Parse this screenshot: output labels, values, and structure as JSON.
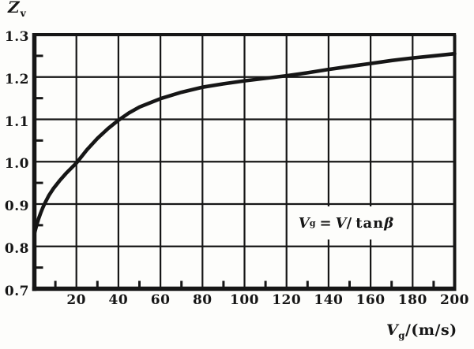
{
  "colors": {
    "ink": "#161616",
    "paper": "#fdfdfb"
  },
  "labels": {
    "y_symbol": {
      "base": "Z",
      "sub": "v",
      "text": "Zv"
    },
    "x_title": {
      "base": "V",
      "sub": "g",
      "rest": "/(m/s)",
      "text": "Vg/(m/s)"
    },
    "annotation": {
      "lhs": "V",
      "lhs_sub": "g",
      "eq": "=",
      "rhs_v": "V",
      "slash": "/",
      "fn": "tan",
      "angle": "β",
      "text": "Vg = V/tanβ"
    }
  },
  "chart_data": {
    "type": "line",
    "title": "",
    "ylabel": "Zv",
    "xlabel": "Vg/(m/s)",
    "annotation": "Vg = V/tanβ",
    "xlim": [
      0,
      200
    ],
    "ylim": [
      0.7,
      1.3
    ],
    "grid": true,
    "x_ticks": [
      20,
      40,
      60,
      80,
      100,
      120,
      140,
      160,
      180,
      200
    ],
    "x_tick_labels": [
      "20",
      "40",
      "60",
      "80",
      "100",
      "120",
      "140",
      "160",
      "180",
      "200"
    ],
    "x_minor_ticks": [
      10,
      30,
      50,
      70,
      90,
      110,
      130,
      150,
      170,
      190
    ],
    "y_ticks": [
      1.3,
      1.2,
      1.1,
      1.0,
      0.9,
      0.8,
      0.7
    ],
    "y_tick_labels": [
      "1.3",
      "1.2",
      "1.1",
      "1.0",
      "0.9",
      "0.8",
      "0.7"
    ],
    "y_minor_ticks": [
      0.75,
      0.85,
      0.95,
      1.05,
      1.15,
      1.25
    ],
    "series": [
      {
        "name": "Zv",
        "x": [
          0,
          1,
          2,
          3,
          4,
          5,
          7,
          9,
          12,
          15,
          20,
          25,
          30,
          35,
          40,
          45,
          50,
          60,
          70,
          80,
          90,
          100,
          110,
          120,
          130,
          140,
          150,
          160,
          170,
          180,
          190,
          200
        ],
        "y": [
          0.83,
          0.849,
          0.865,
          0.879,
          0.891,
          0.902,
          0.921,
          0.936,
          0.955,
          0.972,
          0.997,
          1.028,
          1.055,
          1.078,
          1.098,
          1.115,
          1.129,
          1.149,
          1.164,
          1.176,
          1.184,
          1.191,
          1.197,
          1.203,
          1.21,
          1.218,
          1.225,
          1.232,
          1.239,
          1.245,
          1.25,
          1.255
        ]
      }
    ]
  }
}
